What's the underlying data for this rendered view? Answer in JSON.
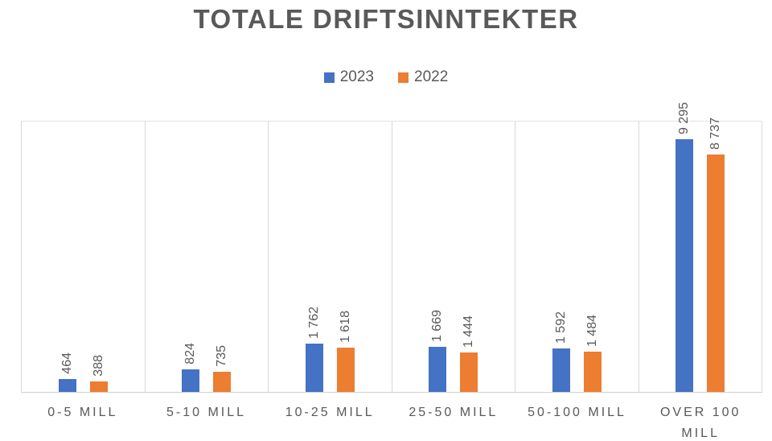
{
  "title": "TOTALE DRIFTSINNTEKTER",
  "chart_data": {
    "type": "bar",
    "title": "TOTALE DRIFTSINNTEKTER",
    "categories": [
      "0-5 MILL",
      "5-10 MILL",
      "10-25 MILL",
      "25-50 MILL",
      "50-100 MILL",
      "OVER 100 MILL"
    ],
    "series": [
      {
        "name": "2023",
        "color": "#4472C4",
        "values": [
          464,
          824,
          1762,
          1669,
          1592,
          9295
        ],
        "value_labels": [
          "464",
          "824",
          "1 762",
          "1 669",
          "1 592",
          "9 295"
        ]
      },
      {
        "name": "2022",
        "color": "#ED7D31",
        "values": [
          388,
          735,
          1618,
          1444,
          1484,
          8737
        ],
        "value_labels": [
          "388",
          "735",
          "1 618",
          "1 444",
          "1 484",
          "8 737"
        ]
      }
    ],
    "xlabel": "",
    "ylabel": "",
    "ylim": [
      0,
      10000
    ],
    "y_axis_visible": false,
    "gridlines": "vertical category separators only",
    "legend_position": "top",
    "data_label_rotation": "vertical bottom-to-top"
  },
  "styles": {
    "title_color": "#595959",
    "label_color": "#595959",
    "gridline_color": "#D9D9D9",
    "series_colors": [
      "#4472C4",
      "#ED7D31"
    ],
    "background": "#FFFFFF"
  }
}
